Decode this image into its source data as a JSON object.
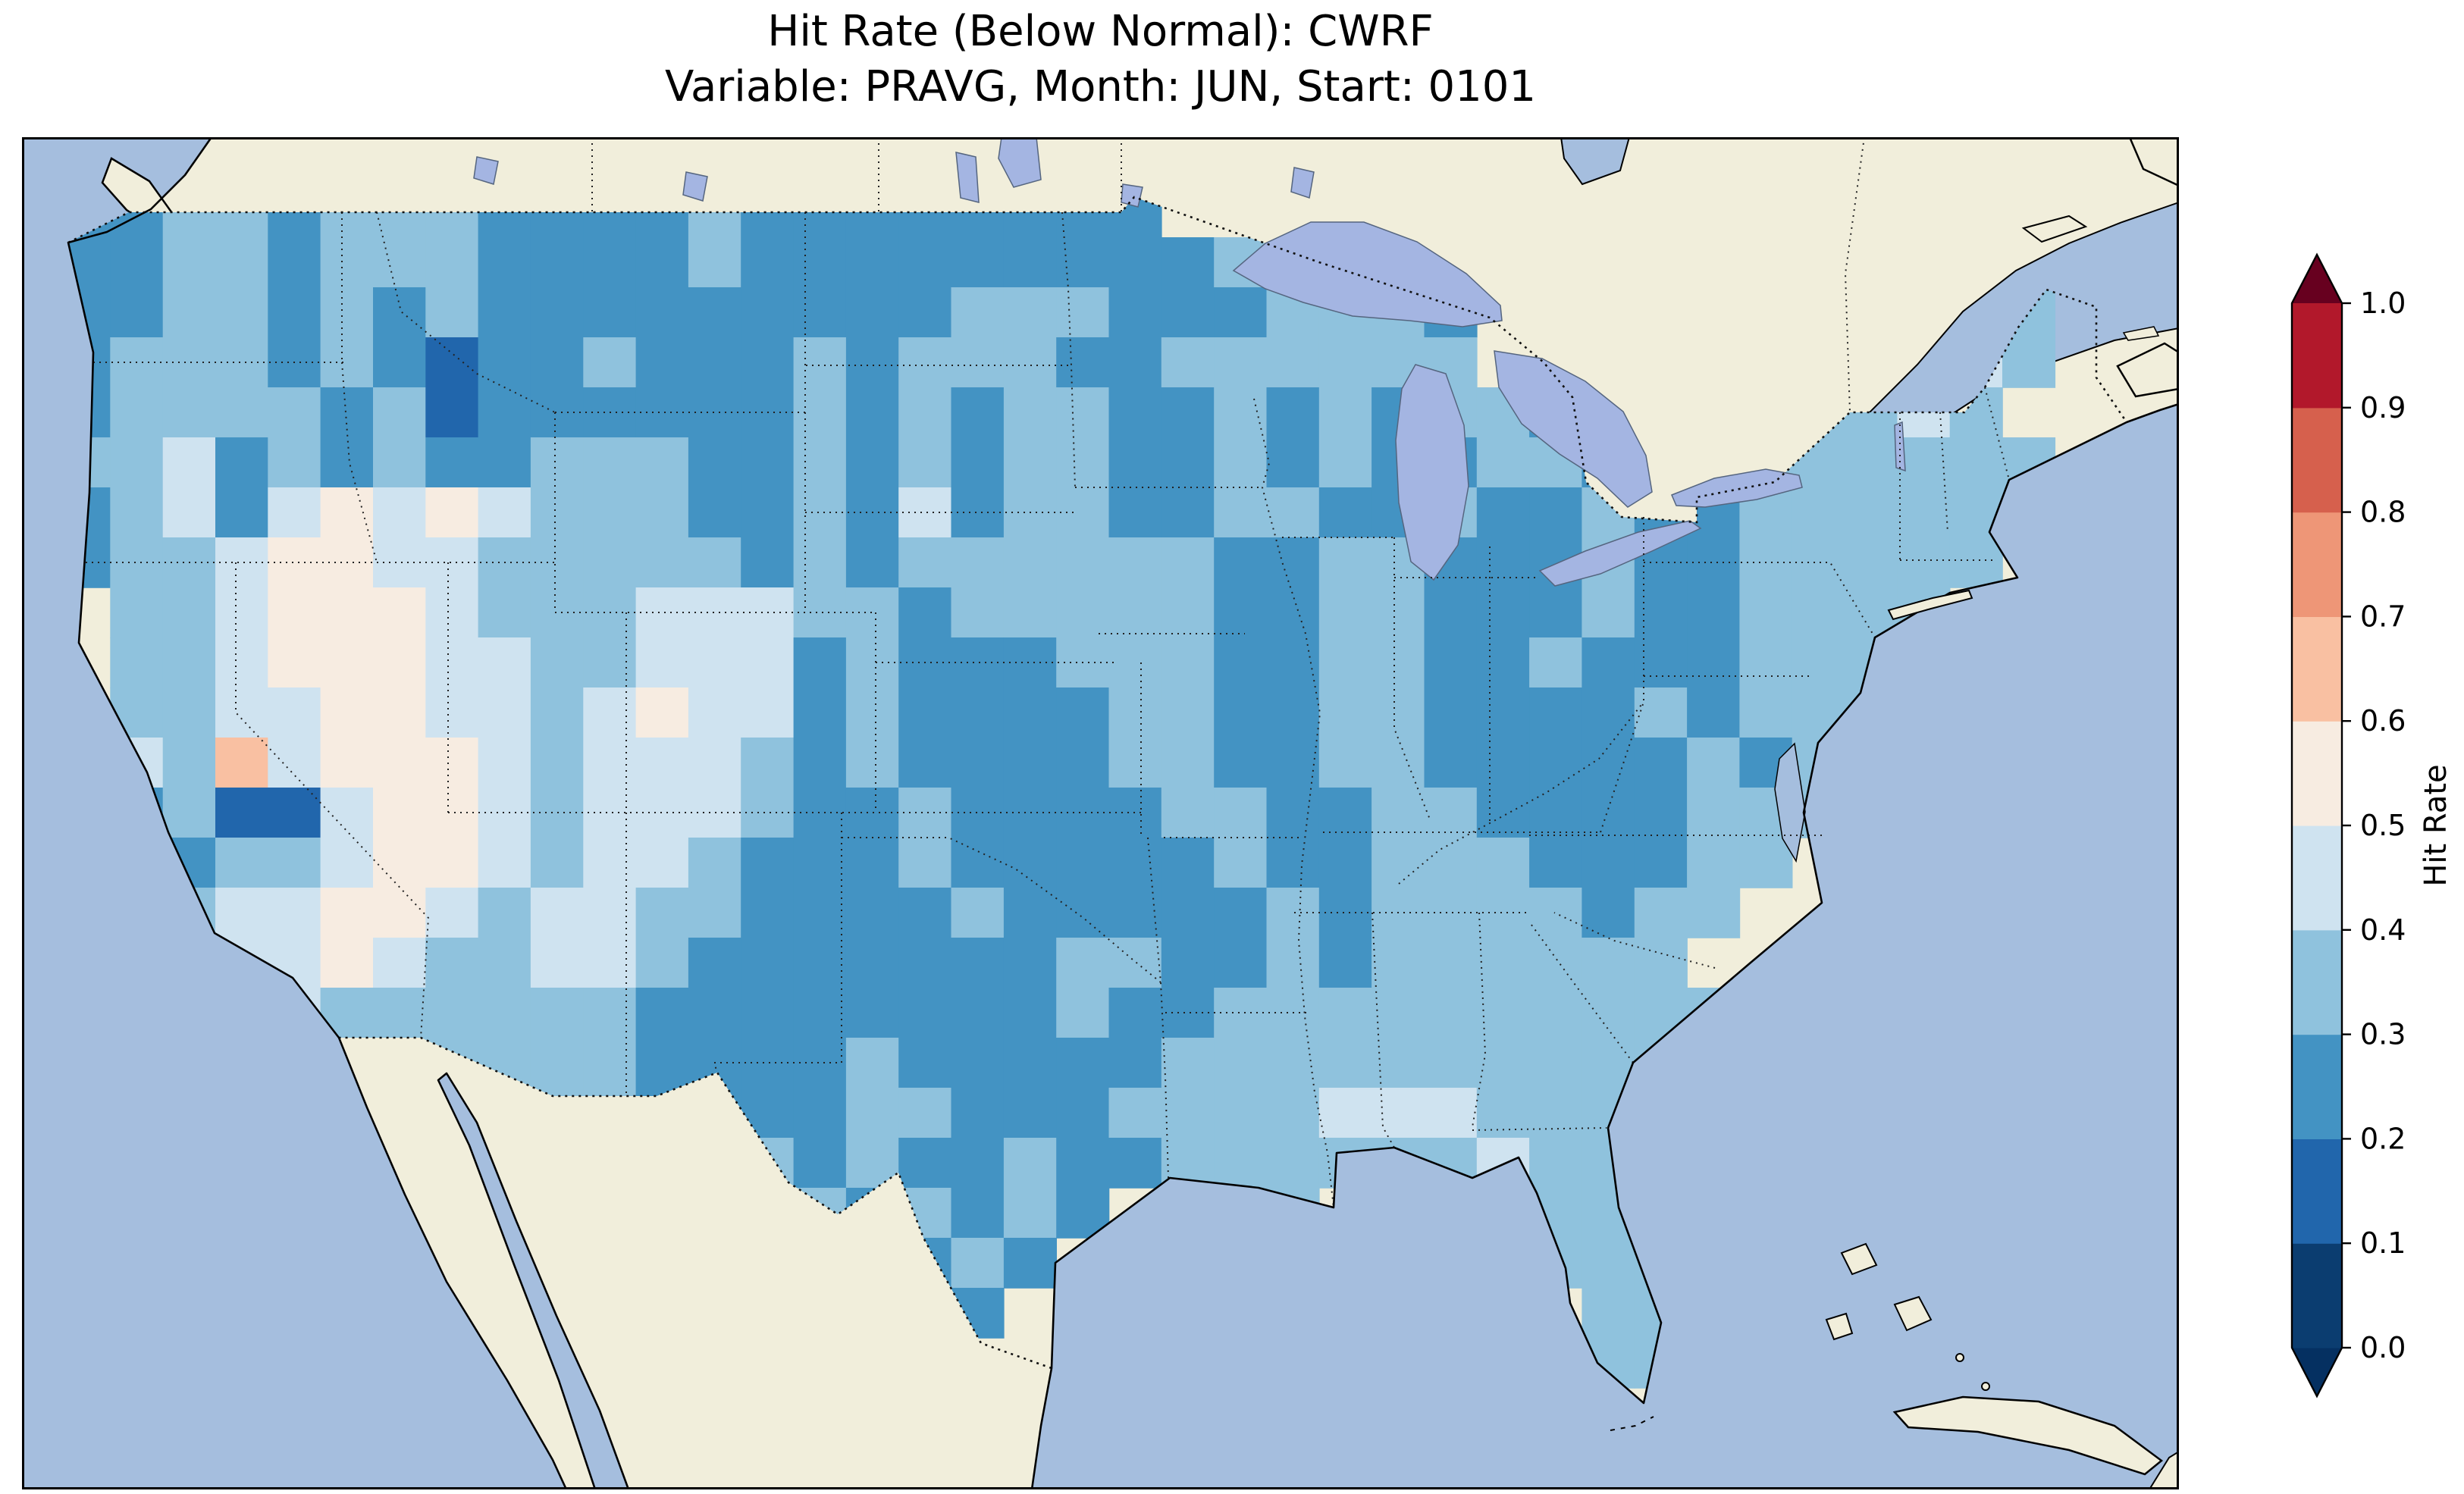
{
  "figure": {
    "title": "Hit Rate (Below Normal): CWRF",
    "subtitle": "Variable: PRAVG, Month: JUN, Start: 0101"
  },
  "chart_data": {
    "type": "heatmap",
    "title": "Hit Rate (Below Normal): CWRF",
    "subtitle": "Variable: PRAVG, Month: JUN, Start: 0101",
    "map": {
      "region": "Contiguous United States with surrounding Canada, Mexico, oceans",
      "projection": "equirectangular approximation",
      "lon_range": [
        -126,
        -65.5
      ],
      "lat_range": [
        23.5,
        50.5
      ]
    },
    "colors": {
      "ocean": "#a5bede",
      "land": "#f1eedb",
      "lakes": "#a4b5e2"
    },
    "colorbar": {
      "label": "Hit Rate",
      "ticks": [
        "0.0",
        "0.1",
        "0.2",
        "0.3",
        "0.4",
        "0.5",
        "0.6",
        "0.7",
        "0.8",
        "0.9",
        "1.0"
      ],
      "bin_edges": [
        0.0,
        0.1,
        0.2,
        0.3,
        0.4,
        0.5,
        0.6,
        0.7,
        0.8,
        0.9,
        1.0
      ],
      "bin_colors": [
        "#0b3d70",
        "#2166ac",
        "#4393c3",
        "#8fc2dd",
        "#cfe3f0",
        "#f7ece1",
        "#f9c0a2",
        "#ee9677",
        "#d6604d",
        "#b2182b"
      ],
      "under_color": "#053061",
      "over_color": "#67001f",
      "extend": "both"
    },
    "grid": {
      "description": "Hit-rate field over CONUS; each char is one grid cell binned by value. '.' = no data (outside US mask).",
      "legend": {
        "0": "0.0-0.1",
        "1": "0.1-0.2",
        "2": "0.2-0.3",
        "3": "0.3-0.4",
        "4": "0.4-0.5",
        "5": "0.5-0.6",
        "6": "0.6-0.7",
        "7": "0.7-0.8",
        "8": "0.8-0.9",
        "9": "0.9-1.0"
      },
      "no_data_char": ".",
      "lon_start": -125.0,
      "lat_start": 49.5,
      "dlon": 1.475,
      "dlat": 1.0,
      "rows": [
        "223323332222322222222...................",
        "223323332222322222222233................",
        "223323232222222223332223332.........33..",
        "233323212232223233322333333........343..",
        "2333323122222232323322323233223233343...",
        "33423232233322323233223232233232333333..",
        "23424545433322324233223322322322333333..",
        "2334554433333232333333223322232233333...",
        ".3345554333444332333332233222322 3333....",
        ".334555443344423222333223322322 2333.....",
        ".3344554434544232222332233222232333.....",
        ".4364555434443232222332233222223233.....",
        ".2311455434443223222233223322 22333......",
        ".2233455434432223222223223332 2233.......",
        ".2344554344332222322222323333233........",
        "..344543344322222223322323333 33.........",
        "...44333333222222223223333333 333........",
        "....4433333222232222233333333 33.........",
        "......33333222233222333344433 3..........",
        ".............32322322333333433 3.........",
        "..............323232.233....333.........",
        "................232.........333.........",
        "................22...........33.........",
        "................2............33........."
      ]
    }
  }
}
